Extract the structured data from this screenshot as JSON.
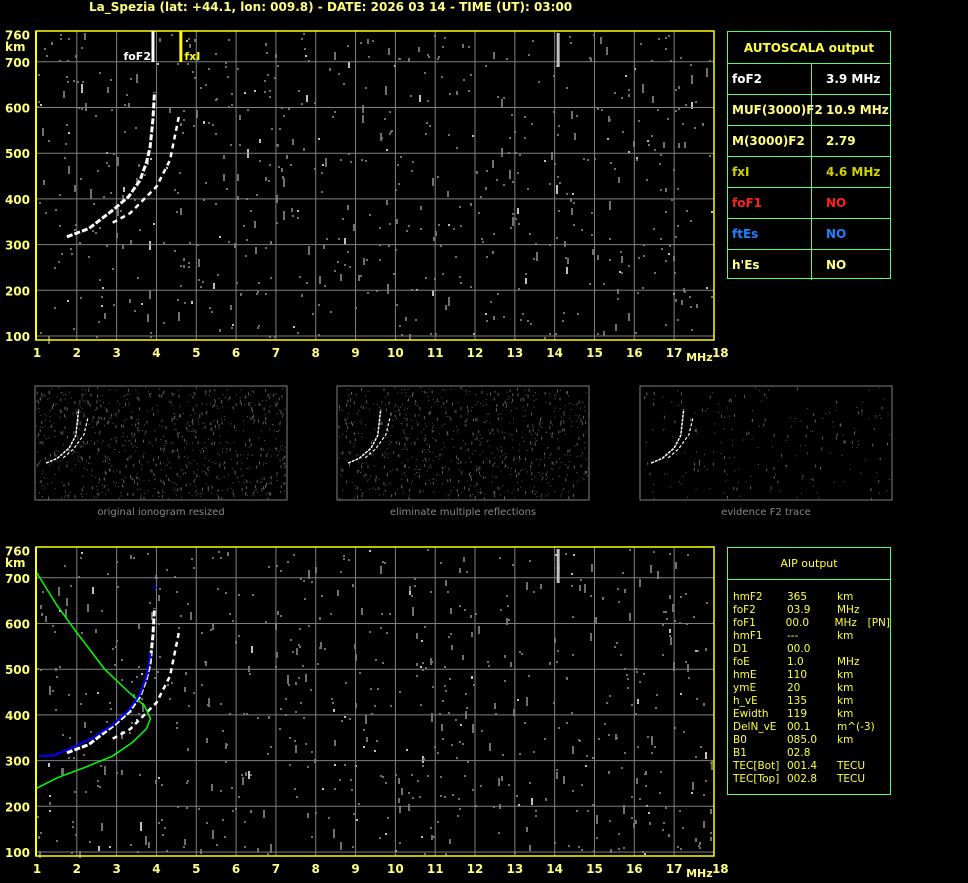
{
  "title": "La_Spezia (lat: +44.1, lon: 009.8) - DATE: 2026 03 14 - TIME (UT): 03:00",
  "axes": {
    "x_ticks": [
      "1",
      "2",
      "3",
      "4",
      "5",
      "6",
      "7",
      "8",
      "9",
      "10",
      "11",
      "12",
      "13",
      "14",
      "15",
      "16",
      "17",
      "18"
    ],
    "x_unit": "MHz",
    "y_ticks": [
      "760",
      "700",
      "600",
      "500",
      "400",
      "300",
      "200",
      "100"
    ],
    "y_unit": "km"
  },
  "markers": {
    "foF2_label": "foF2",
    "foF2_value": 3.9,
    "fxI_label": "fxI",
    "fxI_value": 4.6
  },
  "autoscala": {
    "title": "AUTOSCALA output",
    "rows": [
      {
        "key": "foF2",
        "value": "3.9 MHz",
        "color": "#ffffff"
      },
      {
        "key": "MUF(3000)F2",
        "value": "10.9 MHz",
        "color": "#ffff80"
      },
      {
        "key": "M(3000)F2",
        "value": "2.79",
        "color": "#ffff80"
      },
      {
        "key": "fxI",
        "value": "4.6 MHz",
        "color": "#d0d000"
      },
      {
        "key": "foF1",
        "value": "NO",
        "color": "#ff2020"
      },
      {
        "key": "ftEs",
        "value": "NO",
        "color": "#2080ff"
      },
      {
        "key": "h'Es",
        "value": "NO",
        "color": "#ffff80"
      }
    ]
  },
  "thumbnails": [
    "original ionogram resized",
    "eliminate multiple reflections",
    "evidence F2 trace"
  ],
  "aip": {
    "title": "AIP output",
    "rows": [
      [
        "hmF2",
        "365",
        "km",
        ""
      ],
      [
        "foF2",
        "03.9",
        "MHz",
        ""
      ],
      [
        "foF1",
        "00.0",
        "MHz",
        "[PN]"
      ],
      [
        "hmF1",
        "---",
        "km",
        ""
      ],
      [
        "D1",
        "00.0",
        "",
        ""
      ],
      [
        "foE",
        "1.0",
        "MHz",
        ""
      ],
      [
        "hmE",
        "110",
        "km",
        ""
      ],
      [
        "ymE",
        "20",
        "km",
        ""
      ],
      [
        "h_vE",
        "135",
        "km",
        ""
      ],
      [
        "Ewidth",
        "119",
        "km",
        ""
      ],
      [
        "DelN_vE",
        "00.1",
        "m^(-3)",
        ""
      ],
      [
        "B0",
        "085.0",
        "km",
        ""
      ],
      [
        "B1",
        "02.8",
        "",
        ""
      ],
      [
        "TEC[Bot]",
        "001.4",
        "TECU",
        ""
      ],
      [
        "TEC[Top]",
        "002.8",
        "TECU",
        ""
      ]
    ]
  },
  "colors": {
    "frame": "#ffff00",
    "grid": "#808080",
    "table_border": "#50ff70",
    "profile": "#00ff00",
    "fit": "#0000ff"
  }
}
